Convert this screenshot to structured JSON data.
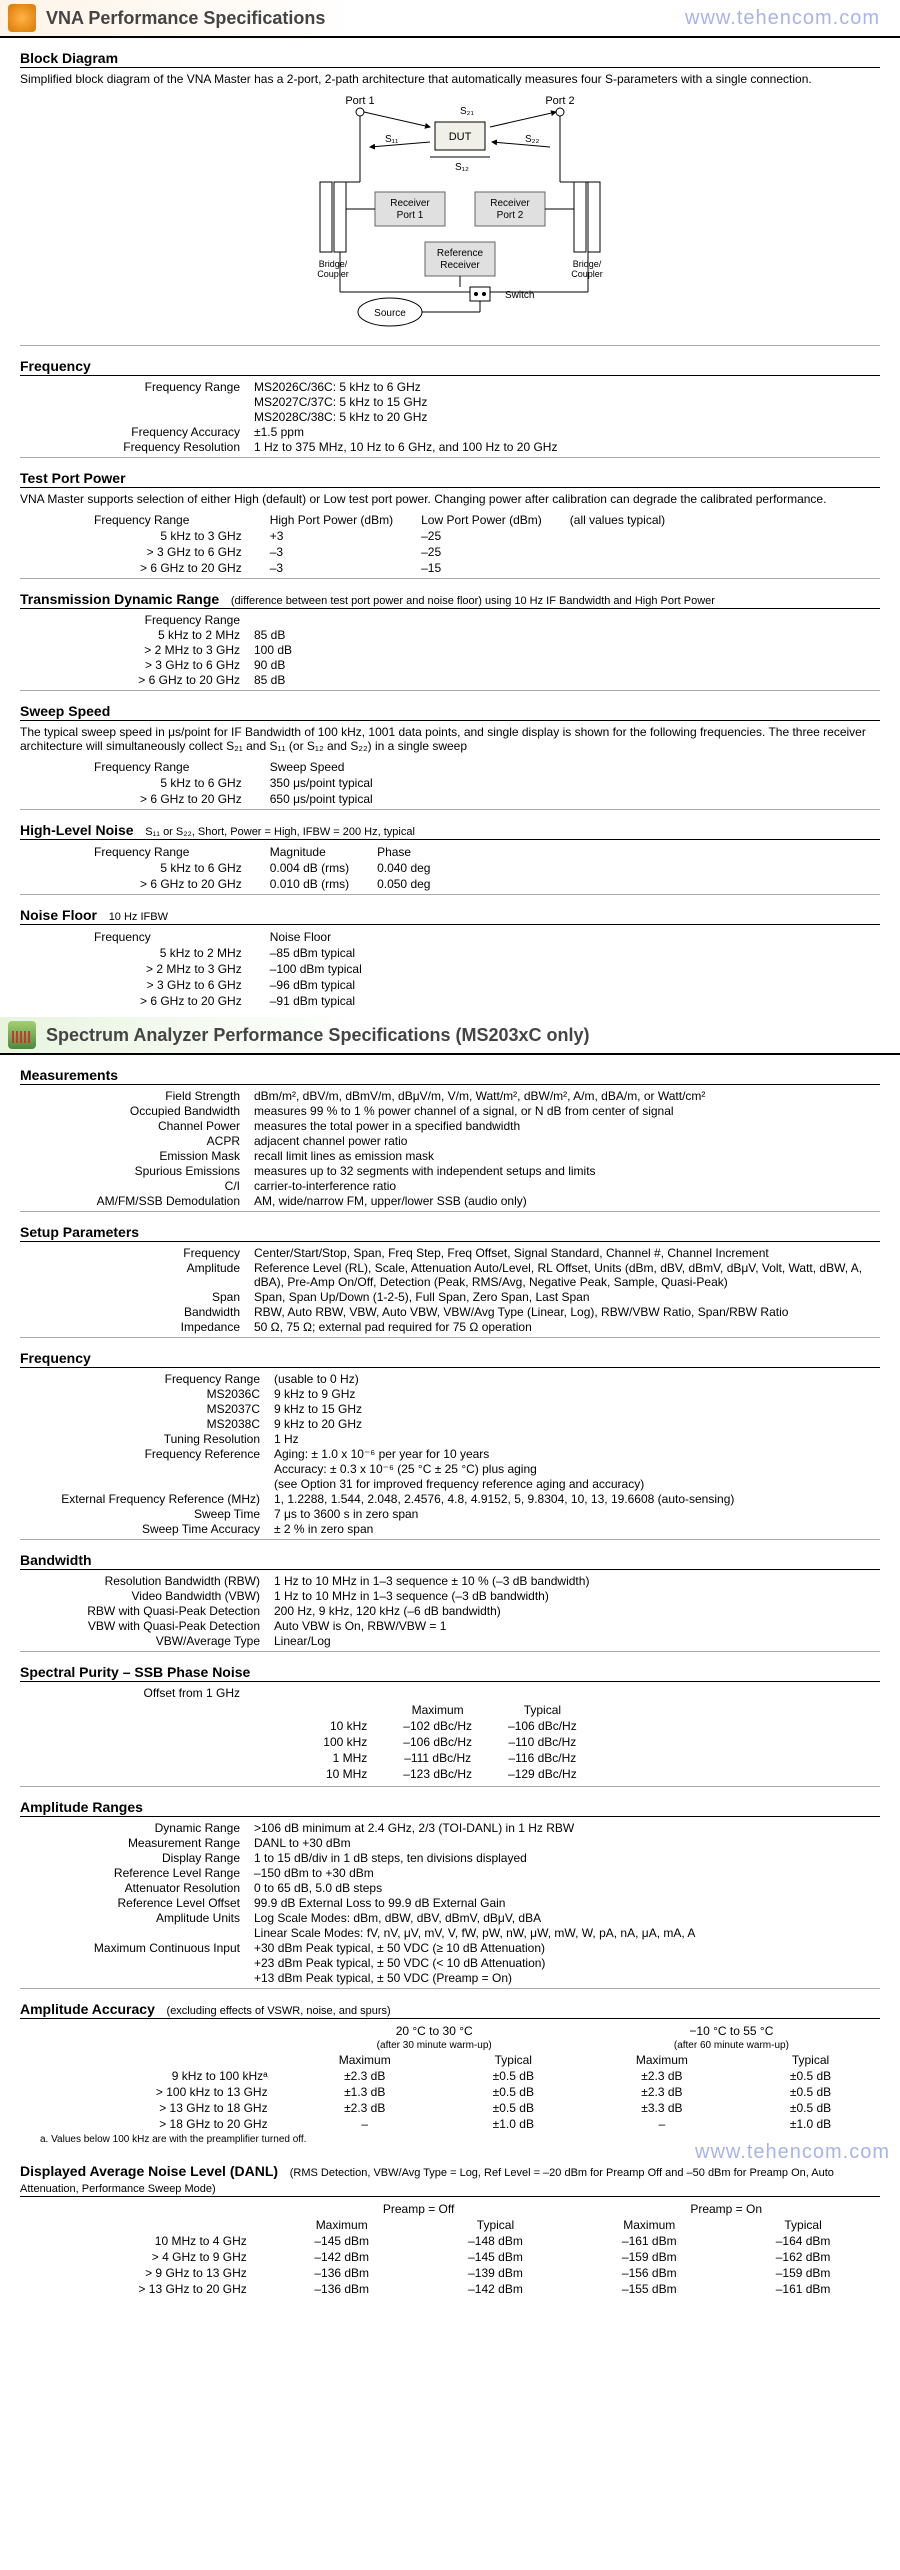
{
  "watermark": "www.tehencom.com",
  "header1": {
    "title": "VNA Performance Specifications"
  },
  "header2": {
    "title": "Spectrum Analyzer Performance Specifications (MS203xC only)"
  },
  "block_diagram": {
    "heading": "Block Diagram",
    "intro": "Simplified block diagram of the VNA Master has a 2-port, 2-path architecture that automatically measures four S-parameters with a single connection.",
    "labels": {
      "port1": "Port 1",
      "port2": "Port 2",
      "dut": "DUT",
      "rx1": "Receiver\nPort 1",
      "rx2": "Receiver\nPort 2",
      "ref": "Reference\nReceiver",
      "bridge": "Bridge/\nCoupler",
      "source": "Source",
      "switch": "Switch",
      "s11": "S",
      "s21": "S",
      "s12": "S",
      "s22": "S"
    }
  },
  "frequency": {
    "heading": "Frequency",
    "rows": [
      {
        "label": "Frequency Range",
        "value": "MS2026C/36C: 5 kHz to 6 GHz\nMS2027C/37C: 5 kHz to 15 GHz\nMS2028C/38C: 5 kHz to 20 GHz"
      },
      {
        "label": "Frequency Accuracy",
        "value": "±1.5 ppm"
      },
      {
        "label": "Frequency Resolution",
        "value": "1 Hz to 375 MHz, 10 Hz to 6 GHz, and 100 Hz to 20 GHz"
      }
    ]
  },
  "test_port_power": {
    "heading": "Test Port Power",
    "intro": "VNA Master supports selection of either High (default) or Low test port power. Changing power after calibration can degrade the calibrated performance.",
    "cols": [
      "Frequency Range",
      "High Port Power (dBm)",
      "Low Port Power (dBm)",
      "(all values typical)"
    ],
    "rows": [
      [
        "5 kHz to 3 GHz",
        "+3",
        "–25"
      ],
      [
        "> 3 GHz to 6 GHz",
        "–3",
        "–25"
      ],
      [
        "> 6 GHz to 20 GHz",
        "–3",
        "–15"
      ]
    ]
  },
  "trans_dyn_range": {
    "heading": "Transmission Dynamic Range",
    "note": "(difference between test port power and noise floor) using 10 Hz IF Bandwidth and High Port Power",
    "rows": [
      {
        "label": "Frequency Range",
        "value": ""
      },
      {
        "label": "5 kHz to 2 MHz",
        "value": "85 dB"
      },
      {
        "label": "> 2 MHz to 3 GHz",
        "value": "100 dB"
      },
      {
        "label": "> 3 GHz to 6 GHz",
        "value": "90 dB"
      },
      {
        "label": "> 6 GHz to 20 GHz",
        "value": "85 dB"
      }
    ]
  },
  "sweep_speed": {
    "heading": "Sweep Speed",
    "intro": "The typical sweep speed in μs/point for IF Bandwidth of 100 kHz, 1001 data points, and single display is shown for the following frequencies. The three receiver architecture will simultaneously collect S₂₁ and S₁₁ (or S₁₂ and S₂₂) in a single sweep",
    "cols": [
      "Frequency Range",
      "Sweep Speed"
    ],
    "rows": [
      [
        "5 kHz to 6 GHz",
        "350 μs/point typical"
      ],
      [
        "> 6 GHz to 20 GHz",
        "650 μs/point typical"
      ]
    ]
  },
  "high_level_noise": {
    "heading": "High-Level Noise",
    "note": "S₁₁ or S₂₂, Short, Power = High, IFBW = 200 Hz, typical",
    "cols": [
      "Frequency Range",
      "Magnitude",
      "Phase"
    ],
    "rows": [
      [
        "5 kHz to 6 GHz",
        "0.004 dB (rms)",
        "0.040 deg"
      ],
      [
        "> 6 GHz to 20 GHz",
        "0.010 dB (rms)",
        "0.050 deg"
      ]
    ]
  },
  "noise_floor": {
    "heading": "Noise Floor",
    "note": "10 Hz IFBW",
    "cols": [
      "Frequency",
      "Noise Floor"
    ],
    "rows": [
      [
        "5 kHz to 2 MHz",
        "–85 dBm typical"
      ],
      [
        "> 2 MHz to 3 GHz",
        "–100 dBm typical"
      ],
      [
        "> 3 GHz to 6 GHz",
        "–96 dBm typical"
      ],
      [
        "> 6 GHz to 20 GHz",
        "–91 dBm typical"
      ]
    ]
  },
  "measurements": {
    "heading": "Measurements",
    "rows": [
      {
        "label": "Field Strength",
        "value": "dBm/m², dBV/m, dBmV/m, dBμV/m, V/m, Watt/m², dBW/m², A/m, dBA/m, or Watt/cm²"
      },
      {
        "label": "Occupied Bandwidth",
        "value": "measures 99 % to 1 % power channel of a signal, or N dB from center of signal"
      },
      {
        "label": "Channel Power",
        "value": "measures the total power in a specified bandwidth"
      },
      {
        "label": "ACPR",
        "value": "adjacent channel power ratio"
      },
      {
        "label": "Emission Mask",
        "value": "recall limit lines as emission mask"
      },
      {
        "label": "Spurious Emissions",
        "value": "measures up to 32 segments with independent setups and limits"
      },
      {
        "label": "C/I",
        "value": "carrier-to-interference ratio"
      },
      {
        "label": "AM/FM/SSB Demodulation",
        "value": "AM, wide/narrow FM, upper/lower SSB (audio only)"
      }
    ]
  },
  "setup_params": {
    "heading": "Setup Parameters",
    "rows": [
      {
        "label": "Frequency",
        "value": "Center/Start/Stop, Span, Freq Step, Freq Offset, Signal Standard, Channel #, Channel Increment"
      },
      {
        "label": "Amplitude",
        "value": "Reference Level (RL), Scale, Attenuation Auto/Level, RL Offset, Units (dBm, dBV, dBmV, dBμV, Volt, Watt, dBW, A, dBA), Pre-Amp On/Off, Detection (Peak, RMS/Avg, Negative Peak, Sample, Quasi-Peak)"
      },
      {
        "label": "Span",
        "value": "Span, Span Up/Down (1-2-5), Full Span, Zero Span, Last Span"
      },
      {
        "label": "Bandwidth",
        "value": "RBW, Auto RBW, VBW, Auto VBW, VBW/Avg Type (Linear, Log), RBW/VBW Ratio, Span/RBW Ratio"
      },
      {
        "label": "Impedance",
        "value": "50 Ω, 75 Ω; external pad required for 75 Ω operation"
      }
    ]
  },
  "spec_frequency": {
    "heading": "Frequency",
    "rows": [
      {
        "label": "Frequency Range",
        "value": "(usable to 0 Hz)"
      },
      {
        "label": "MS2036C",
        "value": "9 kHz to 9 GHz"
      },
      {
        "label": "MS2037C",
        "value": "9 kHz to 15 GHz"
      },
      {
        "label": "MS2038C",
        "value": "9 kHz to 20 GHz"
      },
      {
        "label": "Tuning Resolution",
        "value": "1 Hz"
      },
      {
        "label": "Frequency Reference",
        "value": "Aging:  ± 1.0 x 10⁻⁶ per year for 10 years\nAccuracy:  ± 0.3 x 10⁻⁶ (25 °C ± 25 °C) plus aging\n(see Option 31 for improved frequency reference aging and accuracy)"
      },
      {
        "label": "External Frequency Reference (MHz)",
        "value": "1, 1.2288, 1.544, 2.048, 2.4576, 4.8, 4.9152, 5, 9.8304, 10, 13, 19.6608 (auto-sensing)"
      },
      {
        "label": "Sweep Time",
        "value": "7 μs to 3600 s in zero span"
      },
      {
        "label": "Sweep Time Accuracy",
        "value": "± 2 % in zero span"
      }
    ]
  },
  "bandwidth": {
    "heading": "Bandwidth",
    "rows": [
      {
        "label": "Resolution Bandwidth (RBW)",
        "value": "1 Hz to 10 MHz in 1–3 sequence ± 10 % (–3 dB bandwidth)"
      },
      {
        "label": "Video Bandwidth (VBW)",
        "value": "1 Hz to 10 MHz in 1–3 sequence (–3 dB bandwidth)"
      },
      {
        "label": "RBW with Quasi-Peak Detection",
        "value": "200 Hz, 9 kHz, 120 kHz (–6 dB bandwidth)"
      },
      {
        "label": "VBW with Quasi-Peak Detection",
        "value": "Auto VBW is On, RBW/VBW = 1"
      },
      {
        "label": "VBW/Average Type",
        "value": "Linear/Log"
      }
    ]
  },
  "ssb": {
    "heading": "Spectral Purity – SSB Phase Noise",
    "subhead": "Offset from 1 GHz",
    "cols": [
      "",
      "Maximum",
      "Typical"
    ],
    "rows": [
      [
        "10 kHz",
        "–102 dBc/Hz",
        "–106 dBc/Hz"
      ],
      [
        "100 kHz",
        "–106 dBc/Hz",
        "–110 dBc/Hz"
      ],
      [
        "1 MHz",
        "–111 dBc/Hz",
        "–116 dBc/Hz"
      ],
      [
        "10 MHz",
        "–123 dBc/Hz",
        "–129 dBc/Hz"
      ]
    ]
  },
  "amp_ranges": {
    "heading": "Amplitude Ranges",
    "rows": [
      {
        "label": "Dynamic Range",
        "value": ">106 dB minimum at 2.4 GHz, 2/3 (TOI-DANL) in 1 Hz RBW"
      },
      {
        "label": "Measurement Range",
        "value": "DANL to +30 dBm"
      },
      {
        "label": "Display Range",
        "value": "1 to 15 dB/div in 1 dB steps, ten divisions displayed"
      },
      {
        "label": "Reference Level Range",
        "value": "–150 dBm to +30 dBm"
      },
      {
        "label": "Attenuator Resolution",
        "value": "0 to 65 dB, 5.0 dB steps"
      },
      {
        "label": "Reference Level Offset",
        "value": "99.9 dB External Loss to 99.9 dB External Gain"
      },
      {
        "label": "Amplitude Units",
        "value": "Log Scale Modes: dBm, dBW, dBV, dBmV, dBμV, dBA\nLinear Scale Modes: fV, nV, μV, mV, V, fW, pW, nW, μW, mW, W, pA, nA, μA, mA, A"
      },
      {
        "label": "Maximum Continuous Input",
        "value": "+30 dBm Peak typical, ± 50 VDC (≥ 10 dB Attenuation)\n+23 dBm Peak typical, ± 50 VDC (< 10 dB Attenuation)\n+13 dBm Peak typical, ± 50 VDC (Preamp = On)"
      }
    ]
  },
  "amp_acc": {
    "heading": "Amplitude Accuracy",
    "note": "(excluding effects of VSWR, noise, and spurs)",
    "group1": {
      "title": "20 °C to 30 °C",
      "sub": "(after 30 minute warm-up)"
    },
    "group2": {
      "title": "−10 °C to 55 °C",
      "sub": "(after 60 minute warm-up)"
    },
    "cols": [
      "",
      "Maximum",
      "Typical",
      "Maximum",
      "Typical"
    ],
    "rows": [
      [
        "9 kHz to 100 kHzᵃ",
        "±2.3 dB",
        "±0.5 dB",
        "±2.3 dB",
        "±0.5 dB"
      ],
      [
        "> 100 kHz to 13 GHz",
        "±1.3 dB",
        "±0.5 dB",
        "±2.3 dB",
        "±0.5 dB"
      ],
      [
        "> 13 GHz to 18 GHz",
        "±2.3 dB",
        "±0.5 dB",
        "±3.3 dB",
        "±0.5 dB"
      ],
      [
        "> 18 GHz to 20 GHz",
        "–",
        "±1.0 dB",
        "–",
        "±1.0 dB"
      ]
    ],
    "footnote": "a. Values below 100 kHz are with the preamplifier turned off."
  },
  "danl": {
    "heading": "Displayed Average Noise Level (DANL)",
    "note": "(RMS Detection, VBW/Avg Type = Log, Ref Level = –20 dBm for Preamp Off and –50 dBm for Preamp On, Auto Attenuation, Performance Sweep Mode)",
    "group1": "Preamp = Off",
    "group2": "Preamp = On",
    "cols": [
      "",
      "Maximum",
      "Typical",
      "Maximum",
      "Typical"
    ],
    "rows": [
      [
        "10 MHz to 4 GHz",
        "–145 dBm",
        "–148 dBm",
        "–161 dBm",
        "–164 dBm"
      ],
      [
        "> 4 GHz to 9 GHz",
        "–142 dBm",
        "–145 dBm",
        "–159 dBm",
        "–162 dBm"
      ],
      [
        "> 9 GHz to 13 GHz",
        "–136 dBm",
        "–139 dBm",
        "–156 dBm",
        "–159 dBm"
      ],
      [
        "> 13 GHz to 20 GHz",
        "–136 dBm",
        "–142 dBm",
        "–155 dBm",
        "–161 dBm"
      ]
    ]
  }
}
